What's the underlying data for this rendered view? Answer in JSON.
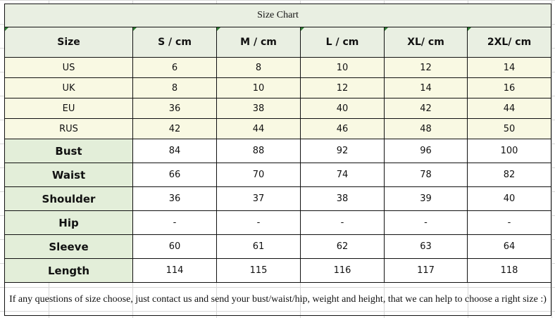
{
  "title": "Size Chart",
  "headers": [
    "Size",
    "S / cm",
    "M / cm",
    "L / cm",
    "XL/ cm",
    "2XL/ cm"
  ],
  "intl_rows": [
    {
      "label": "US",
      "values": [
        "6",
        "8",
        "10",
        "12",
        "14"
      ]
    },
    {
      "label": "UK",
      "values": [
        "8",
        "10",
        "12",
        "14",
        "16"
      ]
    },
    {
      "label": "EU",
      "values": [
        "36",
        "38",
        "40",
        "42",
        "44"
      ]
    },
    {
      "label": "RUS",
      "values": [
        "42",
        "44",
        "46",
        "48",
        "50"
      ]
    }
  ],
  "measurement_rows": [
    {
      "label": "Bust",
      "values": [
        "84",
        "88",
        "92",
        "96",
        "100"
      ]
    },
    {
      "label": "Waist",
      "values": [
        "66",
        "70",
        "74",
        "78",
        "82"
      ]
    },
    {
      "label": "Shoulder",
      "values": [
        "36",
        "37",
        "38",
        "39",
        "40"
      ]
    },
    {
      "label": "Hip",
      "values": [
        "-",
        "-",
        "-",
        "-",
        "-"
      ]
    },
    {
      "label": "Sleeve",
      "values": [
        "60",
        "61",
        "62",
        "63",
        "64"
      ]
    },
    {
      "label": "Length",
      "values": [
        "114",
        "115",
        "116",
        "117",
        "118"
      ]
    }
  ],
  "note": "If any questions of size choose, just contact us and send your bust/waist/hip, weight and height, that we can help to choose a right size :)",
  "colors": {
    "header_bg": "#e9efe2",
    "intl_bg": "#f9f9e3",
    "label_bg": "#e3eed9"
  }
}
